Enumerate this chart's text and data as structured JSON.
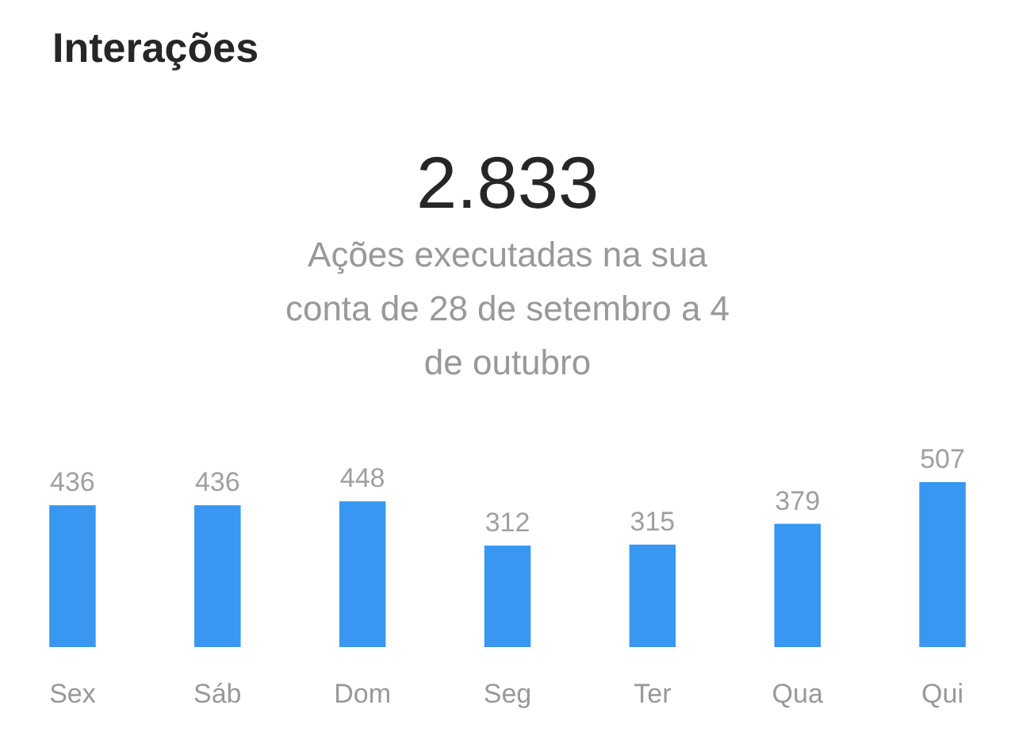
{
  "chart_data": {
    "type": "bar",
    "title": "Interações",
    "subtitle": "2.833",
    "annotations": [
      "Ações executadas na sua conta de 28 de setembro a 4 de outubro"
    ],
    "categories": [
      "Sex",
      "Sáb",
      "Dom",
      "Seg",
      "Ter",
      "Qua",
      "Qui"
    ],
    "values": [
      436,
      436,
      448,
      312,
      315,
      379,
      507
    ],
    "color": "#3897f0",
    "data_labels": true
  }
}
